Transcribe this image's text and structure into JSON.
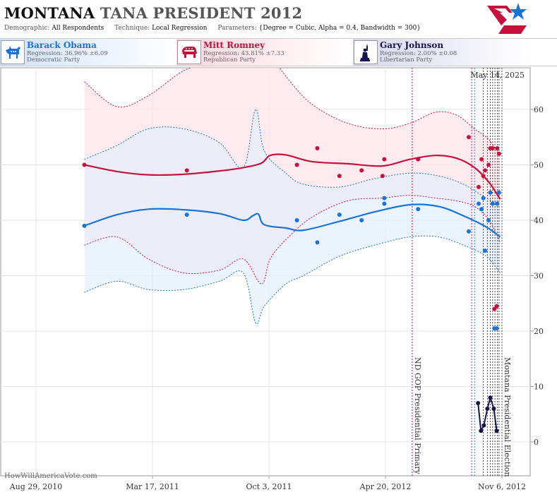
{
  "header": {
    "state": "MONTANA",
    "rest": "TANA PRESIDENT 2012",
    "demographic_label": "Demographic:",
    "demographic_value": "All Respondents",
    "technique_label": "Technique:",
    "technique_value": "Local Regression",
    "parameters_label": "Parameters:",
    "parameters_value": "{Degree = Cubic, Alpha = 0.4, Bandwidth = 300}",
    "logo_icon": "flag-star-logo"
  },
  "candidates": [
    {
      "name": "Barack Obama",
      "regression": "Regression: 36.96% ±6.09",
      "party": "Democratic Party",
      "color": "#1a73d9",
      "icon": "donkey-icon"
    },
    {
      "name": "Mitt Romney",
      "regression": "Regression: 43.81% ±7.33",
      "party": "Republican Party",
      "color": "#c8103c",
      "icon": "elephant-icon"
    },
    {
      "name": "Gary Johnson",
      "regression": "Regression: 2.00% ±0.08",
      "party": "Libertarian Party",
      "color": "#16164a",
      "icon": "statue-of-liberty-icon"
    }
  ],
  "chart": {
    "date_stamp": "May 14, 2025",
    "credit": "HowWillAmericaVote.com",
    "event_labels": [
      "ND GOP Presidential Primary",
      "Montana Presidential Election"
    ]
  },
  "chart_data": {
    "type": "line",
    "xlabel": "",
    "ylabel": "",
    "xlim": [
      "2010-08-29",
      "2012-11-06"
    ],
    "ylim": [
      -3,
      67
    ],
    "x_ticks": [
      "Aug 29, 2010",
      "Mar 17, 2011",
      "Oct 3, 2011",
      "Apr 20, 2012",
      "Nov 6, 2012"
    ],
    "y_ticks": [
      0,
      10,
      20,
      30,
      40,
      50,
      60
    ],
    "grid": true,
    "events": [
      {
        "date": "2012-06-05",
        "label": "ND GOP Presidential Primary",
        "color": "#c8103c"
      },
      {
        "date": "2012-11-06",
        "label": "Montana Presidential Election",
        "color": "#555555"
      }
    ],
    "poll_marker_lines": [
      {
        "date": "2012-09-15",
        "color": "#c8103c"
      },
      {
        "date": "2012-09-20",
        "color": "#1a73d9"
      },
      {
        "date": "2012-10-05",
        "color": "#333333"
      },
      {
        "date": "2012-10-12",
        "color": "#333333"
      },
      {
        "date": "2012-10-17",
        "color": "#333333"
      },
      {
        "date": "2012-10-21",
        "color": "#333333"
      },
      {
        "date": "2012-10-25",
        "color": "#333333"
      },
      {
        "date": "2012-10-29",
        "color": "#333333"
      },
      {
        "date": "2012-11-01",
        "color": "#333333"
      }
    ],
    "series": [
      {
        "name": "Mitt Romney",
        "color": "#c8103c",
        "band_fill": "#fde4ea",
        "trend": [
          [
            "2010-11-20",
            50.0
          ],
          [
            "2011-01-15",
            48.8
          ],
          [
            "2011-03-10",
            48.2
          ],
          [
            "2011-05-10",
            48.3
          ],
          [
            "2011-07-10",
            48.9
          ],
          [
            "2011-08-20",
            49.5
          ],
          [
            "2011-09-20",
            50.3
          ],
          [
            "2011-10-05",
            51.7
          ],
          [
            "2011-11-01",
            51.8
          ],
          [
            "2011-12-15",
            50.6
          ],
          [
            "2012-02-15",
            50.2
          ],
          [
            "2012-04-15",
            49.8
          ],
          [
            "2012-06-01",
            51.0
          ],
          [
            "2012-07-15",
            51.7
          ],
          [
            "2012-08-20",
            51.2
          ],
          [
            "2012-09-20",
            49.5
          ],
          [
            "2012-10-15",
            46.8
          ],
          [
            "2012-11-03",
            43.8
          ]
        ],
        "upper": [
          [
            "2010-11-20",
            65.0
          ],
          [
            "2011-01-15",
            60.5
          ],
          [
            "2011-03-10",
            62.5
          ],
          [
            "2011-05-10",
            67.0
          ],
          [
            "2011-07-10",
            69.0
          ],
          [
            "2011-08-20",
            70.0
          ],
          [
            "2011-09-20",
            72.0
          ],
          [
            "2011-10-05",
            70.0
          ],
          [
            "2011-11-01",
            66.0
          ],
          [
            "2011-12-15",
            61.0
          ],
          [
            "2012-02-15",
            57.5
          ],
          [
            "2012-04-15",
            56.5
          ],
          [
            "2012-06-01",
            57.5
          ],
          [
            "2012-07-15",
            59.5
          ],
          [
            "2012-08-20",
            59.0
          ],
          [
            "2012-09-20",
            56.5
          ],
          [
            "2012-10-15",
            54.5
          ],
          [
            "2012-11-03",
            51.5
          ]
        ],
        "lower": [
          [
            "2010-11-20",
            35.5
          ],
          [
            "2011-01-15",
            37.0
          ],
          [
            "2011-03-10",
            33.0
          ],
          [
            "2011-05-10",
            30.5
          ],
          [
            "2011-07-10",
            31.0
          ],
          [
            "2011-08-20",
            33.0
          ],
          [
            "2011-09-20",
            28.5
          ],
          [
            "2011-10-05",
            33.0
          ],
          [
            "2011-11-01",
            36.5
          ],
          [
            "2011-12-15",
            40.5
          ],
          [
            "2012-02-15",
            43.5
          ],
          [
            "2012-04-15",
            44.0
          ],
          [
            "2012-06-01",
            44.5
          ],
          [
            "2012-07-15",
            44.0
          ],
          [
            "2012-08-20",
            43.5
          ],
          [
            "2012-09-20",
            42.5
          ],
          [
            "2012-10-15",
            40.0
          ],
          [
            "2012-11-03",
            36.0
          ]
        ],
        "points": [
          [
            "2010-11-20",
            50
          ],
          [
            "2011-05-15",
            49
          ],
          [
            "2011-11-20",
            50
          ],
          [
            "2011-12-25",
            53
          ],
          [
            "2012-02-01",
            48
          ],
          [
            "2012-03-10",
            49
          ],
          [
            "2012-04-15",
            48
          ],
          [
            "2012-04-18",
            51
          ],
          [
            "2012-06-15",
            51
          ],
          [
            "2012-09-10",
            55
          ],
          [
            "2012-09-27",
            46
          ],
          [
            "2012-10-02",
            51
          ],
          [
            "2012-10-05",
            48
          ],
          [
            "2012-10-08",
            49
          ],
          [
            "2012-10-14",
            50
          ],
          [
            "2012-10-17",
            53
          ],
          [
            "2012-10-21",
            53
          ],
          [
            "2012-10-24",
            24
          ],
          [
            "2012-10-28",
            24.5
          ],
          [
            "2012-10-29",
            53
          ],
          [
            "2012-11-01",
            52
          ]
        ]
      },
      {
        "name": "Barack Obama",
        "color": "#1a73d9",
        "band_fill": "#e4effc",
        "trend": [
          [
            "2010-11-20",
            39.0
          ],
          [
            "2011-01-15",
            41.0
          ],
          [
            "2011-03-10",
            42.0
          ],
          [
            "2011-05-10",
            41.9
          ],
          [
            "2011-07-10",
            41.2
          ],
          [
            "2011-08-20",
            40.0
          ],
          [
            "2011-09-05",
            40.8
          ],
          [
            "2011-09-15",
            41.1
          ],
          [
            "2011-09-25",
            39.2
          ],
          [
            "2011-11-01",
            38.6
          ],
          [
            "2011-12-01",
            38.2
          ],
          [
            "2012-02-01",
            39.8
          ],
          [
            "2012-04-01",
            41.5
          ],
          [
            "2012-06-01",
            42.8
          ],
          [
            "2012-07-20",
            42.5
          ],
          [
            "2012-09-01",
            40.8
          ],
          [
            "2012-10-10",
            38.8
          ],
          [
            "2012-11-03",
            37.0
          ]
        ],
        "upper": [
          [
            "2010-11-20",
            51.0
          ],
          [
            "2011-01-15",
            53.5
          ],
          [
            "2011-03-10",
            56.5
          ],
          [
            "2011-05-10",
            56.5
          ],
          [
            "2011-07-10",
            54.0
          ],
          [
            "2011-08-20",
            49.5
          ],
          [
            "2011-09-10",
            60.0
          ],
          [
            "2011-09-25",
            52.5
          ],
          [
            "2011-11-01",
            48.5
          ],
          [
            "2011-12-01",
            46.5
          ],
          [
            "2012-02-01",
            46.0
          ],
          [
            "2012-04-01",
            47.5
          ],
          [
            "2012-06-01",
            48.5
          ],
          [
            "2012-07-20",
            48.0
          ],
          [
            "2012-09-01",
            46.5
          ],
          [
            "2012-10-10",
            44.0
          ],
          [
            "2012-11-03",
            43.0
          ]
        ],
        "lower": [
          [
            "2010-11-20",
            27.0
          ],
          [
            "2011-01-15",
            29.0
          ],
          [
            "2011-03-10",
            27.5
          ],
          [
            "2011-05-10",
            27.5
          ],
          [
            "2011-07-10",
            29.0
          ],
          [
            "2011-08-20",
            30.5
          ],
          [
            "2011-09-10",
            21.5
          ],
          [
            "2011-09-25",
            24.5
          ],
          [
            "2011-11-01",
            28.5
          ],
          [
            "2011-12-01",
            30.0
          ],
          [
            "2012-02-01",
            33.5
          ],
          [
            "2012-04-01",
            35.5
          ],
          [
            "2012-06-01",
            37.0
          ],
          [
            "2012-07-20",
            37.0
          ],
          [
            "2012-09-01",
            35.5
          ],
          [
            "2012-10-10",
            33.5
          ],
          [
            "2012-11-03",
            30.5
          ]
        ],
        "points": [
          [
            "2010-11-20",
            39
          ],
          [
            "2011-05-15",
            41
          ],
          [
            "2011-11-20",
            40
          ],
          [
            "2011-12-25",
            36
          ],
          [
            "2012-02-01",
            41
          ],
          [
            "2012-03-10",
            40
          ],
          [
            "2012-04-18",
            43
          ],
          [
            "2012-04-18",
            44
          ],
          [
            "2012-06-15",
            42
          ],
          [
            "2012-09-10",
            38
          ],
          [
            "2012-09-27",
            43
          ],
          [
            "2012-10-02",
            42
          ],
          [
            "2012-10-05",
            44
          ],
          [
            "2012-10-08",
            34.5
          ],
          [
            "2012-10-14",
            40
          ],
          [
            "2012-10-17",
            45
          ],
          [
            "2012-10-21",
            43
          ],
          [
            "2012-10-24",
            20.5
          ],
          [
            "2012-10-28",
            20.5
          ],
          [
            "2012-10-29",
            43
          ],
          [
            "2012-11-01",
            45
          ]
        ]
      },
      {
        "name": "Gary Johnson",
        "color": "#16164a",
        "trend": [
          [
            "2012-09-26",
            7
          ],
          [
            "2012-10-01",
            2
          ],
          [
            "2012-10-06",
            3
          ],
          [
            "2012-10-12",
            6
          ],
          [
            "2012-10-17",
            8
          ],
          [
            "2012-10-23",
            6
          ],
          [
            "2012-10-28",
            2
          ]
        ],
        "points": [
          [
            "2012-09-26",
            7
          ],
          [
            "2012-10-01",
            2
          ],
          [
            "2012-10-06",
            3
          ],
          [
            "2012-10-12",
            6
          ],
          [
            "2012-10-17",
            8
          ],
          [
            "2012-10-23",
            6
          ],
          [
            "2012-10-28",
            2
          ]
        ]
      }
    ]
  }
}
